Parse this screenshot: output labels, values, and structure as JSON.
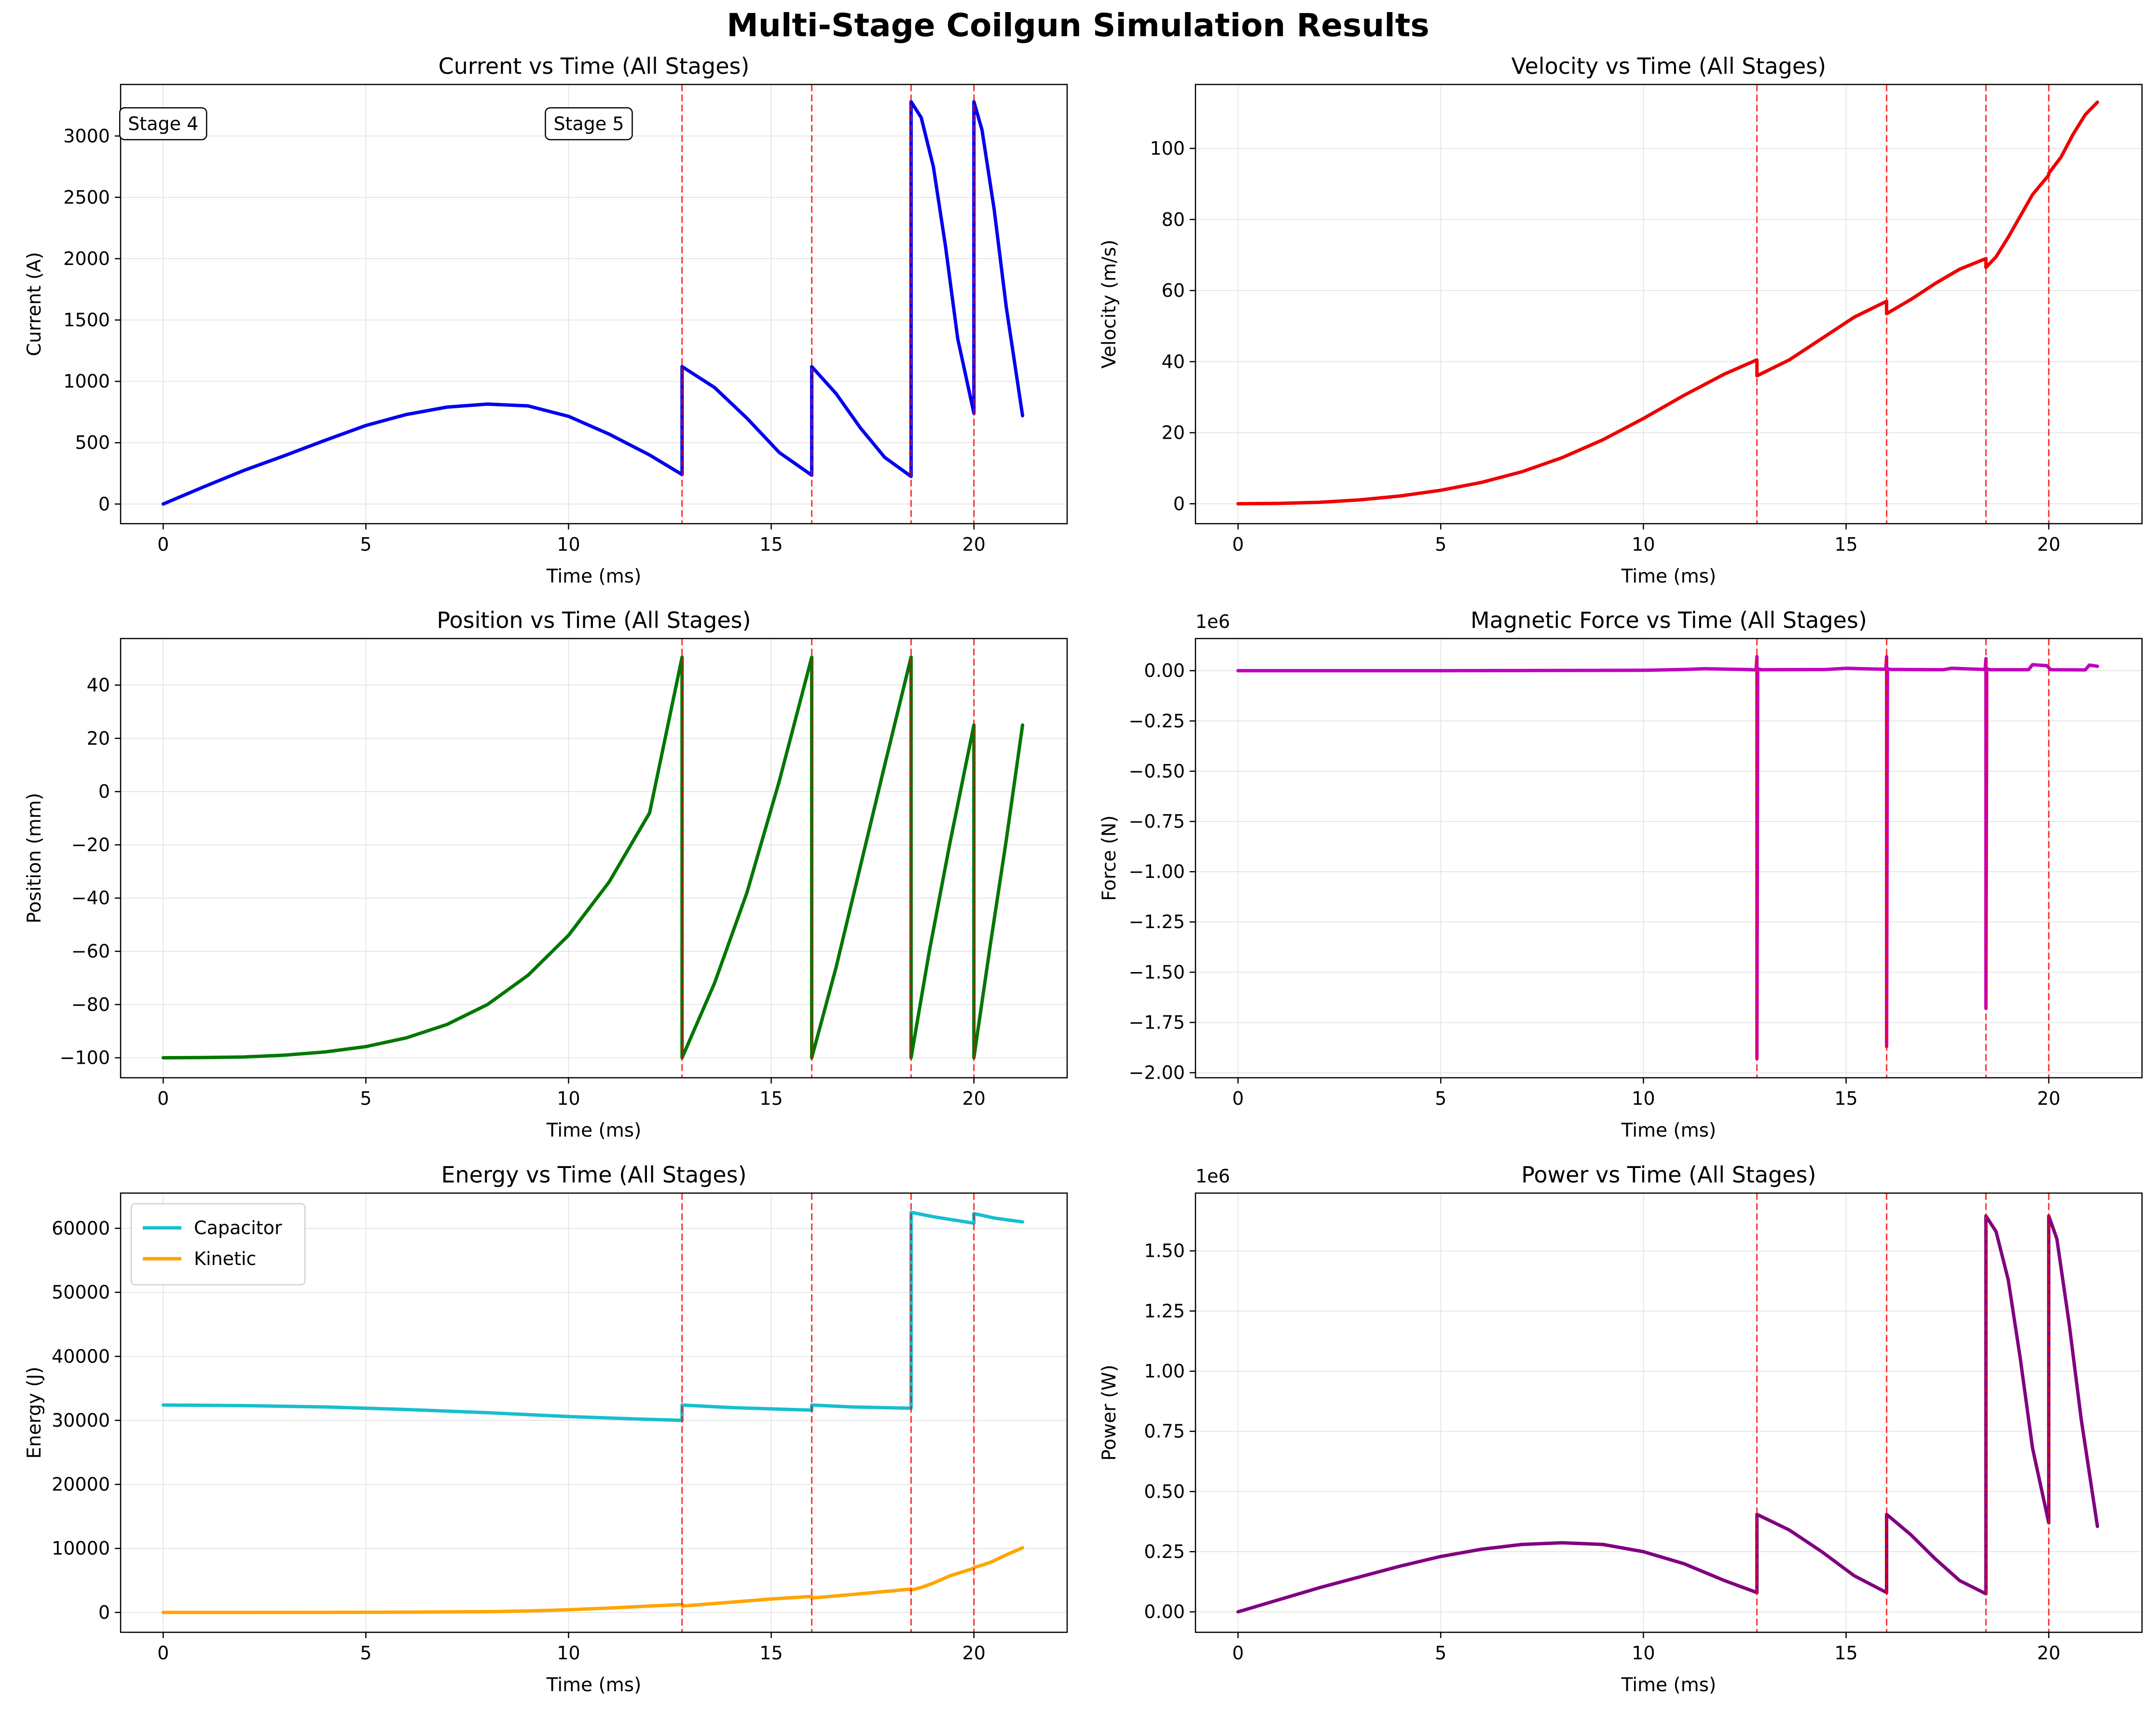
{
  "figure": {
    "title": "Multi-Stage Coilgun Simulation Results"
  },
  "colors": {
    "current": "#0000ee",
    "velocity": "#ee0000",
    "position": "#007700",
    "force": "#c000c0",
    "capacitor": "#17becf",
    "kinetic": "#ffa500",
    "power": "#800080",
    "stage_marker": "#ff0000",
    "grid": "#e6e6e6"
  },
  "chart_data": [
    {
      "id": "current",
      "type": "line",
      "title": "Current vs Time (All Stages)",
      "xlabel": "Time (ms)",
      "ylabel": "Current (A)",
      "xlim": [
        -1.05,
        22.3
      ],
      "ylim": [
        -160,
        3420
      ],
      "xticks": [
        "0",
        "5",
        "10",
        "15",
        "20"
      ],
      "xtick_values": [
        0,
        5,
        10,
        15,
        20
      ],
      "yticks": [
        "0",
        "500",
        "1000",
        "1500",
        "2000",
        "2500",
        "3000"
      ],
      "ytick_values": [
        0,
        500,
        1000,
        1500,
        2000,
        2500,
        3000
      ],
      "offset_label": "",
      "grid": true,
      "stage_lines": [
        12.8,
        16.0,
        18.45,
        20.0
      ],
      "annotations": [
        {
          "text": "Stage 4",
          "x": 0.0,
          "y": 3100
        },
        {
          "text": "Stage 5",
          "x": 10.5,
          "y": 3100
        }
      ],
      "series": [
        {
          "name": "",
          "color_key": "current",
          "x": [
            0,
            1,
            2,
            3,
            4,
            5,
            6,
            7,
            8,
            9,
            10,
            11,
            12,
            12.8,
            12.8,
            13.6,
            14.4,
            15.2,
            16.0,
            16.0,
            16.6,
            17.2,
            17.8,
            18.45,
            18.45,
            18.7,
            19.0,
            19.3,
            19.6,
            20.0,
            20.0,
            20.2,
            20.5,
            20.8,
            21.2
          ],
          "y": [
            0,
            140,
            275,
            395,
            520,
            640,
            730,
            790,
            815,
            800,
            715,
            570,
            400,
            240,
            1120,
            950,
            700,
            420,
            235,
            1120,
            900,
            620,
            380,
            225,
            3280,
            3150,
            2750,
            2100,
            1350,
            740,
            3280,
            3050,
            2400,
            1600,
            720
          ]
        }
      ]
    },
    {
      "id": "velocity",
      "type": "line",
      "title": "Velocity vs Time (All Stages)",
      "xlabel": "Time (ms)",
      "ylabel": "Velocity (m/s)",
      "xlim": [
        -1.05,
        22.3
      ],
      "ylim": [
        -5.6,
        118
      ],
      "xticks": [
        "0",
        "5",
        "10",
        "15",
        "20"
      ],
      "xtick_values": [
        0,
        5,
        10,
        15,
        20
      ],
      "yticks": [
        "0",
        "20",
        "40",
        "60",
        "80",
        "100"
      ],
      "ytick_values": [
        0,
        20,
        40,
        60,
        80,
        100
      ],
      "offset_label": "",
      "grid": true,
      "stage_lines": [
        12.8,
        16.0,
        18.45,
        20.0
      ],
      "annotations": [],
      "series": [
        {
          "name": "",
          "color_key": "velocity",
          "x": [
            0,
            1,
            2,
            3,
            4,
            5,
            6,
            7,
            8,
            9,
            10,
            11,
            12,
            12.8,
            12.8,
            13.6,
            14.4,
            15.2,
            16.0,
            16.0,
            16.6,
            17.2,
            17.8,
            18.45,
            18.45,
            18.7,
            19.0,
            19.3,
            19.6,
            20.0,
            20.0,
            20.3,
            20.6,
            20.9,
            21.2
          ],
          "y": [
            0,
            0.1,
            0.4,
            1.1,
            2.2,
            3.8,
            6.0,
            9.0,
            13.0,
            18.0,
            24.0,
            30.5,
            36.5,
            40.5,
            36.0,
            40.5,
            46.5,
            52.5,
            57.0,
            53.5,
            57.5,
            62.0,
            66.0,
            69.0,
            66.5,
            69.5,
            75.0,
            81.0,
            87.0,
            92.5,
            93.0,
            97.5,
            104.0,
            109.5,
            113.0
          ]
        }
      ]
    },
    {
      "id": "position",
      "type": "line",
      "title": "Position vs Time (All Stages)",
      "xlabel": "Time (ms)",
      "ylabel": "Position (mm)",
      "xlim": [
        -1.05,
        22.3
      ],
      "ylim": [
        -107.5,
        57.5
      ],
      "xticks": [
        "0",
        "5",
        "10",
        "15",
        "20"
      ],
      "xtick_values": [
        0,
        5,
        10,
        15,
        20
      ],
      "yticks": [
        "−100",
        "−80",
        "−60",
        "−40",
        "−20",
        "0",
        "20",
        "40"
      ],
      "ytick_values": [
        -100,
        -80,
        -60,
        -40,
        -20,
        0,
        20,
        40
      ],
      "offset_label": "",
      "grid": true,
      "stage_lines": [
        12.8,
        16.0,
        18.45,
        20.0
      ],
      "annotations": [],
      "series": [
        {
          "name": "",
          "color_key": "position",
          "x": [
            0,
            1,
            2,
            3,
            4,
            5,
            6,
            7,
            8,
            9,
            10,
            11,
            12,
            12.8,
            12.8,
            13.6,
            14.4,
            15.2,
            16.0,
            16.0,
            16.6,
            17.2,
            17.8,
            18.45,
            18.45,
            18.9,
            19.4,
            20.0,
            20.0,
            20.4,
            20.8,
            21.2
          ],
          "y": [
            -100,
            -99.9,
            -99.7,
            -99,
            -97.8,
            -95.8,
            -92.5,
            -87.5,
            -80,
            -69,
            -54,
            -34,
            -8,
            50.5,
            -100,
            -72,
            -38,
            4,
            50.5,
            -100,
            -66,
            -28,
            10,
            50.5,
            -100,
            -60,
            -20,
            25,
            -100,
            -58,
            -18,
            25
          ]
        }
      ]
    },
    {
      "id": "force",
      "type": "line",
      "title": "Magnetic Force vs Time (All Stages)",
      "xlabel": "Time (ms)",
      "ylabel": "Force (N)",
      "xlim": [
        -1.05,
        22.3
      ],
      "ylim": [
        -2.025,
        0.16
      ],
      "xticks": [
        "0",
        "5",
        "10",
        "15",
        "20"
      ],
      "xtick_values": [
        0,
        5,
        10,
        15,
        20
      ],
      "yticks": [
        "−2.00",
        "−1.75",
        "−1.50",
        "−1.25",
        "−1.00",
        "−0.75",
        "−0.50",
        "−0.25",
        "0.00"
      ],
      "ytick_values": [
        -2.0,
        -1.75,
        -1.5,
        -1.25,
        -1.0,
        -0.75,
        -0.5,
        -0.25,
        0.0
      ],
      "offset_label": "1e6",
      "grid": true,
      "stage_lines": [
        12.8,
        16.0,
        18.45,
        20.0
      ],
      "annotations": [],
      "series": [
        {
          "name": "",
          "color_key": "force",
          "x": [
            0,
            5,
            10,
            11,
            11.5,
            12.5,
            12.78,
            12.8,
            12.8,
            12.82,
            12.9,
            14.5,
            15.0,
            15.98,
            16.0,
            16.0,
            16.02,
            16.1,
            17.4,
            17.6,
            18.43,
            18.45,
            18.45,
            18.47,
            18.55,
            19.5,
            19.6,
            19.95,
            20.05,
            20.9,
            21.0,
            21.2
          ],
          "y": [
            0,
            0,
            0.002,
            0.006,
            0.01,
            0.006,
            0.004,
            0.07,
            -1.93,
            0.01,
            0.005,
            0.006,
            0.012,
            0.007,
            0.07,
            -1.87,
            0.01,
            0.006,
            0.005,
            0.012,
            0.006,
            0.06,
            -1.68,
            0.01,
            0.005,
            0.005,
            0.03,
            0.025,
            0.005,
            0.004,
            0.028,
            0.022
          ]
        }
      ]
    },
    {
      "id": "energy",
      "type": "line",
      "title": "Energy vs Time (All Stages)",
      "xlabel": "Time (ms)",
      "ylabel": "Energy (J)",
      "xlim": [
        -1.05,
        22.3
      ],
      "ylim": [
        -3100,
        65500
      ],
      "xticks": [
        "0",
        "5",
        "10",
        "15",
        "20"
      ],
      "xtick_values": [
        0,
        5,
        10,
        15,
        20
      ],
      "yticks": [
        "0",
        "10000",
        "20000",
        "30000",
        "40000",
        "50000",
        "60000"
      ],
      "ytick_values": [
        0,
        10000,
        20000,
        30000,
        40000,
        50000,
        60000
      ],
      "offset_label": "",
      "grid": true,
      "legend": "upper left",
      "stage_lines": [
        12.8,
        16.0,
        18.45,
        20.0
      ],
      "annotations": [],
      "series": [
        {
          "name": "Capacitor",
          "color_key": "capacitor",
          "x": [
            0,
            2,
            4,
            6,
            8,
            10,
            12,
            12.8,
            12.8,
            14,
            16.0,
            16.0,
            17,
            18.45,
            18.45,
            19,
            20.0,
            20.0,
            20.5,
            21.2
          ],
          "y": [
            32400,
            32300,
            32100,
            31700,
            31200,
            30600,
            30150,
            30000,
            32400,
            32000,
            31600,
            32400,
            32100,
            31900,
            62500,
            61800,
            60800,
            62300,
            61600,
            61000
          ]
        },
        {
          "name": "Kinetic",
          "color_key": "kinetic",
          "x": [
            0,
            2,
            4,
            6,
            8,
            9,
            10,
            11,
            12,
            12.8,
            12.8,
            14,
            15,
            16.0,
            16.0,
            17,
            18.45,
            18.45,
            18.7,
            19.0,
            19.4,
            20.0,
            20.0,
            20.4,
            20.8,
            21.2
          ],
          "y": [
            0,
            0,
            10,
            40,
            120,
            230,
            420,
            690,
            1000,
            1250,
            1000,
            1600,
            2100,
            2500,
            2250,
            2800,
            3650,
            3500,
            3900,
            4600,
            5700,
            6900,
            7000,
            7800,
            9000,
            10100
          ]
        }
      ]
    },
    {
      "id": "power",
      "type": "line",
      "title": "Power vs Time (All Stages)",
      "xlabel": "Time (ms)",
      "ylabel": "Power (W)",
      "xlim": [
        -1.05,
        22.3
      ],
      "ylim": [
        -0.085,
        1.74
      ],
      "xticks": [
        "0",
        "5",
        "10",
        "15",
        "20"
      ],
      "xtick_values": [
        0,
        5,
        10,
        15,
        20
      ],
      "yticks": [
        "0.00",
        "0.25",
        "0.50",
        "0.75",
        "1.00",
        "1.25",
        "1.50"
      ],
      "ytick_values": [
        0,
        0.25,
        0.5,
        0.75,
        1.0,
        1.25,
        1.5
      ],
      "offset_label": "1e6",
      "grid": true,
      "stage_lines": [
        12.8,
        16.0,
        18.45,
        20.0
      ],
      "annotations": [],
      "series": [
        {
          "name": "",
          "color_key": "power",
          "x": [
            0,
            1,
            2,
            3,
            4,
            5,
            6,
            7,
            8,
            9,
            10,
            11,
            12,
            12.8,
            12.8,
            13.6,
            14.4,
            15.2,
            16.0,
            16.0,
            16.6,
            17.2,
            17.8,
            18.45,
            18.45,
            18.7,
            19.0,
            19.3,
            19.6,
            20.0,
            20.0,
            20.2,
            20.5,
            20.8,
            21.2
          ],
          "y": [
            0,
            0.05,
            0.1,
            0.145,
            0.19,
            0.23,
            0.26,
            0.28,
            0.287,
            0.28,
            0.25,
            0.2,
            0.13,
            0.08,
            0.405,
            0.34,
            0.25,
            0.15,
            0.08,
            0.405,
            0.32,
            0.22,
            0.13,
            0.075,
            1.645,
            1.58,
            1.38,
            1.05,
            0.68,
            0.37,
            1.645,
            1.55,
            1.2,
            0.8,
            0.355
          ]
        }
      ]
    }
  ]
}
